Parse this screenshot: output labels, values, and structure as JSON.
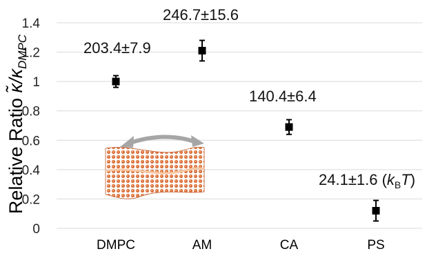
{
  "chart_data": {
    "type": "scatter",
    "categories": [
      "DMPC",
      "AM",
      "CA",
      "PS"
    ],
    "values": [
      1.0,
      1.21,
      0.69,
      0.12
    ],
    "errors": [
      0.04,
      0.07,
      0.05,
      0.07
    ],
    "annotations": [
      "203.4±7.9",
      "246.7±15.6",
      "140.4±6.4",
      "24.1±1.6 ("
    ],
    "annotation_suffix": {
      "k": "k",
      "sub": "B",
      "t": "T",
      "close": ")"
    },
    "ylabel": {
      "prefix": "Relative Ratio ",
      "kappa": "κ̃/κ",
      "sub": "DMPC"
    },
    "ylim": [
      0,
      1.4
    ],
    "yticks": [
      "0",
      "0.2",
      "0.4",
      "0.6",
      "0.8",
      "1",
      "1.2",
      "1.4"
    ],
    "grid": true,
    "colors": {
      "marker": "#000000",
      "grid": "#d9d9d9",
      "membrane": "#d9703a",
      "arrow": "#a6a6a6"
    },
    "inset_icon": "lipid-bilayer-membrane-illustration"
  }
}
